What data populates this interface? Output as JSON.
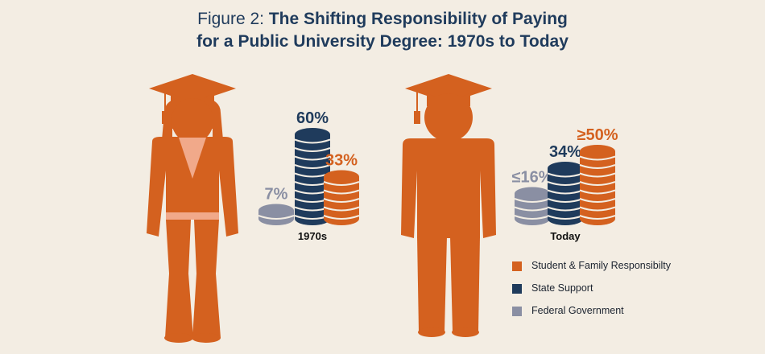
{
  "title": {
    "prefix": "Figure 2:",
    "line1": "The Shifting Responsibility of Paying",
    "line2": "for a Public University Degree: 1970s to Today"
  },
  "colors": {
    "student_family": "#d4611f",
    "state": "#1f3b5c",
    "federal": "#8a8fa3",
    "background": "#f3ede3"
  },
  "chart_data": {
    "type": "bar",
    "title": "The Shifting Responsibility of Paying for a Public University Degree: 1970s to Today",
    "categories": [
      "1970s",
      "Today"
    ],
    "series": [
      {
        "name": "Federal Government",
        "values": [
          7,
          16
        ],
        "labels": [
          "7%",
          "≤16%"
        ]
      },
      {
        "name": "State Support",
        "values": [
          60,
          34
        ],
        "labels": [
          "60%",
          "34%"
        ]
      },
      {
        "name": "Student & Family Responsibilty",
        "values": [
          33,
          50
        ],
        "labels": [
          "33%",
          "≥50%"
        ]
      }
    ],
    "legend": [
      "Student & Family Responsibilty",
      "State Support",
      "Federal Government"
    ],
    "legend_placement": "bottom-right"
  }
}
